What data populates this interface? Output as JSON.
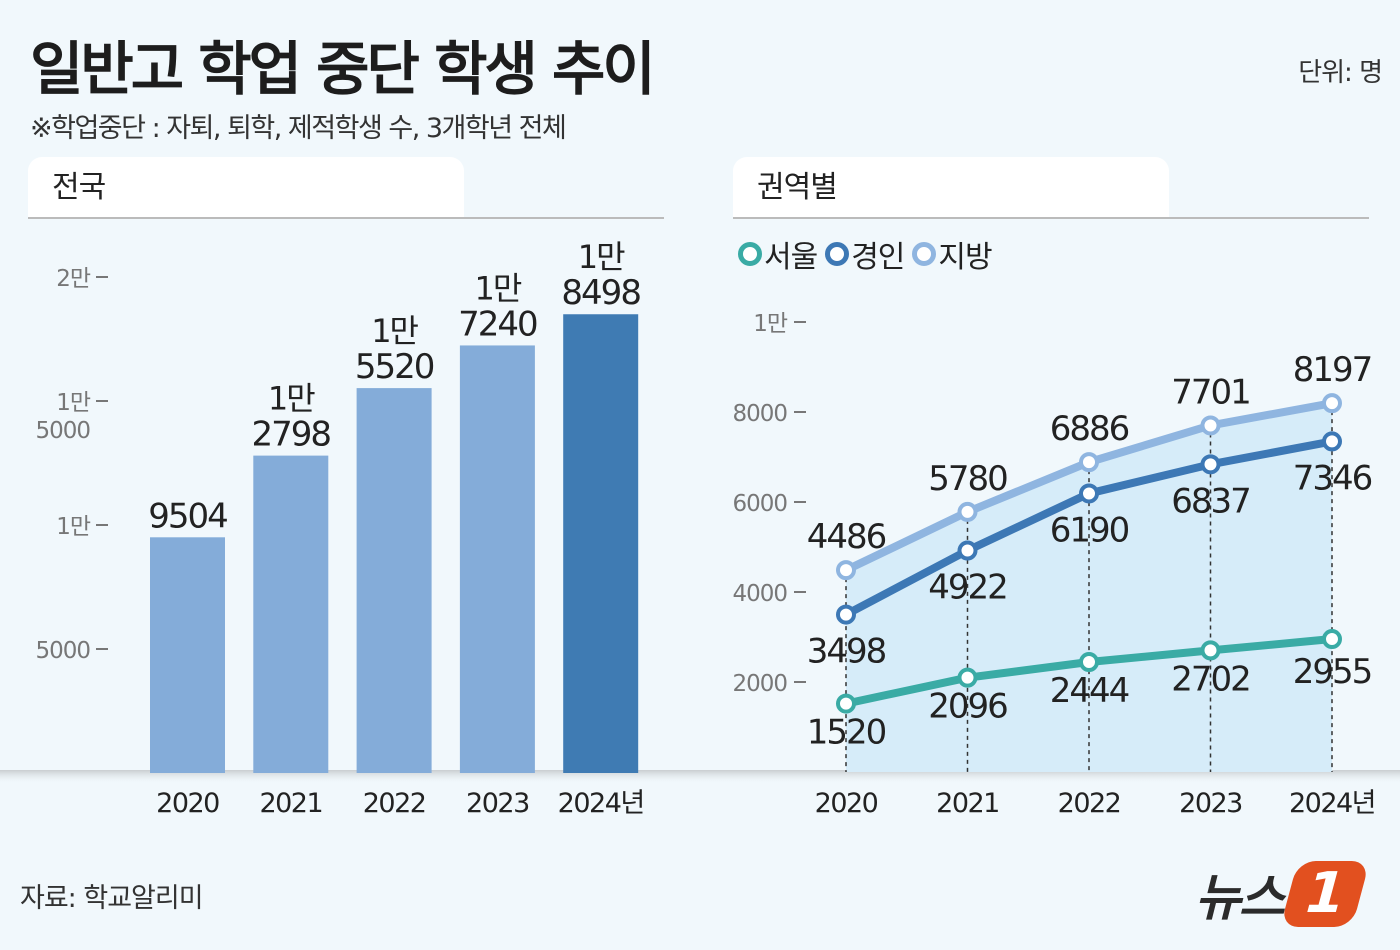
{
  "header": {
    "title": "일반고 학업 중단 학생 추이",
    "subtitle": "※학업중단 : 자퇴, 퇴학, 제적학생 수, 3개학년 전체",
    "unit": "단위: 명"
  },
  "source": "자료: 학교알리미",
  "logo": {
    "text": "뉴스",
    "mark": "1",
    "brand_color": "#e2501f"
  },
  "chart_data": [
    {
      "type": "bar",
      "panel_title": "전국",
      "categories": [
        "2020",
        "2021",
        "2022",
        "2023",
        "2024년"
      ],
      "values": [
        9504,
        12798,
        15520,
        17240,
        18498
      ],
      "data_labels": [
        [
          "",
          "9504"
        ],
        [
          "1만",
          "2798"
        ],
        [
          "1만",
          "5520"
        ],
        [
          "1만",
          "7240"
        ],
        [
          "1만",
          "8498"
        ]
      ],
      "yticks": [
        {
          "value": 5000,
          "label": [
            "5000"
          ]
        },
        {
          "value": 10000,
          "label": [
            "1만"
          ]
        },
        {
          "value": 15000,
          "label": [
            "1만",
            "5000"
          ]
        },
        {
          "value": 20000,
          "label": [
            "2만"
          ]
        }
      ],
      "ylim": [
        0,
        20000
      ],
      "colors": {
        "bar": "#84acd9",
        "highlight": "#3f7bb3"
      },
      "grid": false
    },
    {
      "type": "line",
      "panel_title": "권역별",
      "categories": [
        "2020",
        "2021",
        "2022",
        "2023",
        "2024년"
      ],
      "series": [
        {
          "name": "서울",
          "values": [
            1520,
            2096,
            2444,
            2702,
            2955
          ],
          "color": "#3aaba5"
        },
        {
          "name": "경인",
          "values": [
            3498,
            4922,
            6190,
            6837,
            7346
          ],
          "color": "#3d78b5"
        },
        {
          "name": "지방",
          "values": [
            4486,
            5780,
            6886,
            7701,
            8197
          ],
          "color": "#8fb5e0"
        }
      ],
      "yticks": [
        {
          "value": 2000,
          "label": "2000"
        },
        {
          "value": 4000,
          "label": "4000"
        },
        {
          "value": 6000,
          "label": "6000"
        },
        {
          "value": 8000,
          "label": "8000"
        },
        {
          "value": 10000,
          "label": "1만"
        }
      ],
      "ylim": [
        0,
        10000
      ],
      "legend": "top-left",
      "grid": false
    }
  ]
}
